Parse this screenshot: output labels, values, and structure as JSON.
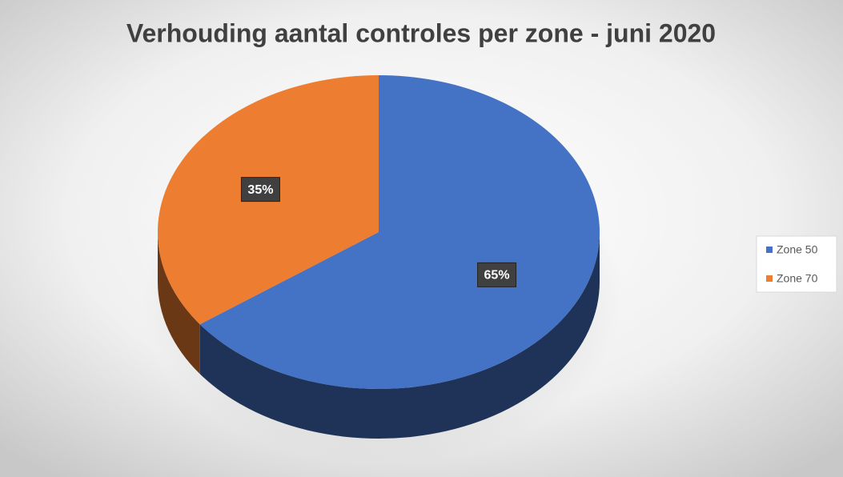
{
  "chart_data": {
    "type": "pie",
    "title": "Verhouding aantal controles per zone - juni 2020",
    "categories": [
      "Zone 50",
      "Zone 70"
    ],
    "values": [
      65,
      35
    ],
    "value_labels": [
      "65%",
      "35%"
    ],
    "colors": [
      "#4472c4",
      "#ed7d31"
    ],
    "legend": "right"
  }
}
